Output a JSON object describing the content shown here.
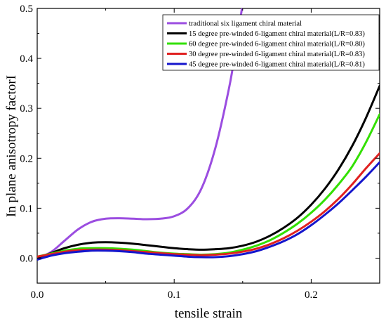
{
  "chart_data": {
    "type": "line",
    "xlabel": "tensile strain",
    "ylabel": "In plane anisotropy factorI",
    "xlim": [
      0,
      0.25
    ],
    "ylim": [
      -0.05,
      0.5
    ],
    "xticks": [
      0.0,
      0.1,
      0.2
    ],
    "xtick_labels": [
      "0.0",
      "0.1",
      "0.2"
    ],
    "yticks": [
      0.0,
      0.1,
      0.2,
      0.3,
      0.4,
      0.5
    ],
    "ytick_labels": [
      "0.0",
      "0.1",
      "0.2",
      "0.3",
      "0.4",
      "0.5"
    ],
    "legend_position": "top-right",
    "grid": false,
    "series": [
      {
        "name": "traditional six ligament chiral material",
        "color": "#9B4DE0",
        "x": [
          0,
          0.01,
          0.02,
          0.03,
          0.04,
          0.05,
          0.06,
          0.07,
          0.08,
          0.09,
          0.1,
          0.11,
          0.12,
          0.13,
          0.14,
          0.145,
          0.15
        ],
        "y": [
          0.0,
          0.012,
          0.035,
          0.058,
          0.073,
          0.079,
          0.08,
          0.079,
          0.078,
          0.079,
          0.084,
          0.1,
          0.14,
          0.22,
          0.34,
          0.42,
          0.51
        ]
      },
      {
        "name": "15 degree pre-winded 6-ligament chiral material(L/R=0.83)",
        "color": "#000000",
        "x": [
          0,
          0.01,
          0.02,
          0.03,
          0.04,
          0.05,
          0.06,
          0.07,
          0.08,
          0.09,
          0.1,
          0.11,
          0.12,
          0.13,
          0.14,
          0.15,
          0.16,
          0.17,
          0.18,
          0.19,
          0.2,
          0.21,
          0.22,
          0.23,
          0.24,
          0.25
        ],
        "y": [
          0.0,
          0.01,
          0.02,
          0.027,
          0.031,
          0.032,
          0.031,
          0.029,
          0.026,
          0.023,
          0.02,
          0.018,
          0.017,
          0.018,
          0.02,
          0.025,
          0.033,
          0.045,
          0.061,
          0.081,
          0.107,
          0.139,
          0.178,
          0.225,
          0.281,
          0.345
        ]
      },
      {
        "name": "60 degree pre-winded 6-ligament chiral material(L/R=0.80)",
        "color": "#33E000",
        "x": [
          0,
          0.01,
          0.02,
          0.03,
          0.04,
          0.05,
          0.06,
          0.07,
          0.08,
          0.09,
          0.1,
          0.11,
          0.12,
          0.13,
          0.14,
          0.15,
          0.16,
          0.17,
          0.18,
          0.19,
          0.2,
          0.21,
          0.22,
          0.23,
          0.24,
          0.25
        ],
        "y": [
          0.003,
          0.009,
          0.015,
          0.019,
          0.02,
          0.02,
          0.019,
          0.017,
          0.014,
          0.011,
          0.009,
          0.008,
          0.007,
          0.008,
          0.011,
          0.017,
          0.025,
          0.036,
          0.051,
          0.069,
          0.091,
          0.117,
          0.148,
          0.184,
          0.232,
          0.288
        ]
      },
      {
        "name": "30 degree pre-winded 6-ligament chiral material(L/R=0.83)",
        "color": "#E02020",
        "x": [
          0,
          0.01,
          0.02,
          0.03,
          0.04,
          0.05,
          0.06,
          0.07,
          0.08,
          0.09,
          0.1,
          0.11,
          0.12,
          0.13,
          0.14,
          0.15,
          0.16,
          0.17,
          0.18,
          0.19,
          0.2,
          0.21,
          0.22,
          0.23,
          0.24,
          0.25
        ],
        "y": [
          0.003,
          0.008,
          0.013,
          0.016,
          0.017,
          0.017,
          0.016,
          0.014,
          0.012,
          0.01,
          0.008,
          0.007,
          0.006,
          0.007,
          0.009,
          0.013,
          0.019,
          0.028,
          0.04,
          0.055,
          0.073,
          0.094,
          0.119,
          0.148,
          0.18,
          0.21
        ]
      },
      {
        "name": "45 degree pre-winded 6-ligament chiral material(L/R=0.81)",
        "color": "#1515CC",
        "x": [
          0,
          0.01,
          0.02,
          0.03,
          0.04,
          0.05,
          0.06,
          0.07,
          0.08,
          0.09,
          0.1,
          0.11,
          0.12,
          0.13,
          0.14,
          0.15,
          0.16,
          0.17,
          0.18,
          0.19,
          0.2,
          0.21,
          0.22,
          0.23,
          0.24,
          0.25
        ],
        "y": [
          -0.003,
          0.005,
          0.01,
          0.013,
          0.015,
          0.015,
          0.014,
          0.012,
          0.009,
          0.007,
          0.005,
          0.003,
          0.002,
          0.002,
          0.004,
          0.008,
          0.014,
          0.023,
          0.034,
          0.048,
          0.066,
          0.087,
          0.11,
          0.136,
          0.163,
          0.192
        ]
      }
    ]
  }
}
